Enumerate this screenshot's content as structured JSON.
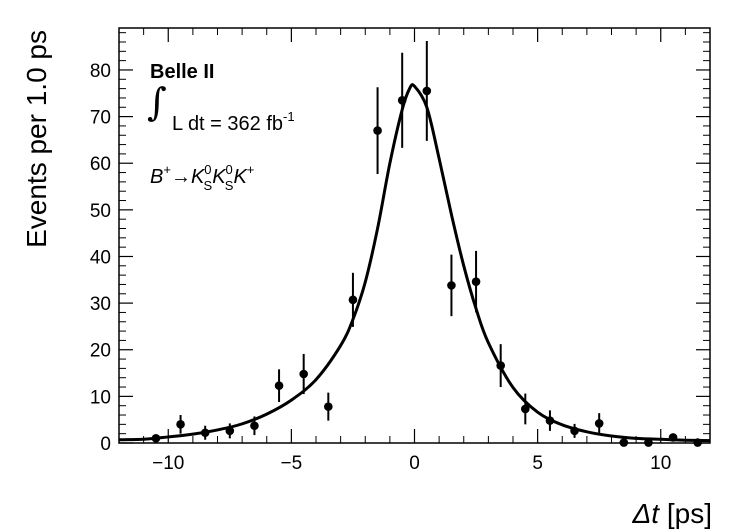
{
  "chart_data": {
    "type": "scatter",
    "xlabel_symbol": "Δt",
    "xlabel_unit": " [ps]",
    "ylabel": "Events per 1.0 ps",
    "xlim": [
      -12,
      12
    ],
    "ylim": [
      0,
      89
    ],
    "x_ticks": [
      -10,
      -5,
      0,
      5,
      10
    ],
    "x_tick_labels": [
      "−10",
      "−5",
      "0",
      "5",
      "10"
    ],
    "y_ticks": [
      0,
      10,
      20,
      30,
      40,
      50,
      60,
      70,
      80
    ],
    "y_tick_labels": [
      "0",
      "10",
      "20",
      "30",
      "40",
      "50",
      "60",
      "70",
      "80"
    ],
    "grid": false,
    "annotations": {
      "experiment": "Belle II",
      "lumi_integral": "∫",
      "lumi_text": "L dt = 362 fb",
      "lumi_exp": "-1",
      "decay_B": "B",
      "decay_B_charge": "+",
      "decay_arrow": "→",
      "decay_K1": "K",
      "decay_K1_sup": "0",
      "decay_K1_sub": "S",
      "decay_K2": "K",
      "decay_K2_sup": "0",
      "decay_K2_sub": "S",
      "decay_K3": "K",
      "decay_K3_charge": "+"
    },
    "points": [
      {
        "x": -10.5,
        "y": 1,
        "err": 0.5
      },
      {
        "x": -9.5,
        "y": 4,
        "err": 2
      },
      {
        "x": -8.5,
        "y": 2.2,
        "err": 1.5
      },
      {
        "x": -7.5,
        "y": 2.6,
        "err": 1.6
      },
      {
        "x": -6.5,
        "y": 3.7,
        "err": 2
      },
      {
        "x": -5.5,
        "y": 12.3,
        "err": 3.5
      },
      {
        "x": -4.5,
        "y": 14.8,
        "err": 4.3
      },
      {
        "x": -3.5,
        "y": 7.8,
        "err": 3
      },
      {
        "x": -2.5,
        "y": 30.7,
        "err": 5.8
      },
      {
        "x": -1.5,
        "y": 67,
        "err": 9.3
      },
      {
        "x": -0.5,
        "y": 73.5,
        "err": 10.2
      },
      {
        "x": 0.5,
        "y": 75.5,
        "err": 10.7
      },
      {
        "x": 1.5,
        "y": 33.8,
        "err": 6.6
      },
      {
        "x": 2.5,
        "y": 34.6,
        "err": 6.6
      },
      {
        "x": 3.5,
        "y": 16.6,
        "err": 4.6
      },
      {
        "x": 4.5,
        "y": 7.3,
        "err": 3.3
      },
      {
        "x": 5.5,
        "y": 4.8,
        "err": 2.2
      },
      {
        "x": 6.5,
        "y": 2.6,
        "err": 1.5
      },
      {
        "x": 7.5,
        "y": 4.2,
        "err": 2.2
      },
      {
        "x": 8.5,
        "y": 0.1,
        "err": 0
      },
      {
        "x": 9.5,
        "y": 0.1,
        "err": 0
      },
      {
        "x": 10.5,
        "y": 1.2,
        "err": 0.6
      },
      {
        "x": 11.5,
        "y": 0.1,
        "err": 0
      }
    ],
    "fit_curve": {
      "x": [
        -12,
        -11,
        -10,
        -9,
        -8,
        -7,
        -6,
        -5,
        -4,
        -3,
        -2.5,
        -2,
        -1.5,
        -1,
        -0.5,
        -0.2,
        0,
        0.5,
        1,
        1.5,
        2,
        2.5,
        3,
        4,
        5,
        6,
        7,
        8,
        9,
        10,
        11,
        12
      ],
      "y": [
        0.7,
        0.8,
        1.3,
        1.9,
        2.8,
        4.1,
        6.2,
        9.2,
        13.6,
        20.9,
        26.5,
        34.5,
        46,
        60,
        71.5,
        76,
        76.5,
        72,
        61,
        49,
        38,
        28.8,
        21.5,
        11.9,
        6.6,
        3.9,
        2.4,
        1.5,
        1.0,
        0.8,
        0.6,
        0.5
      ]
    }
  }
}
